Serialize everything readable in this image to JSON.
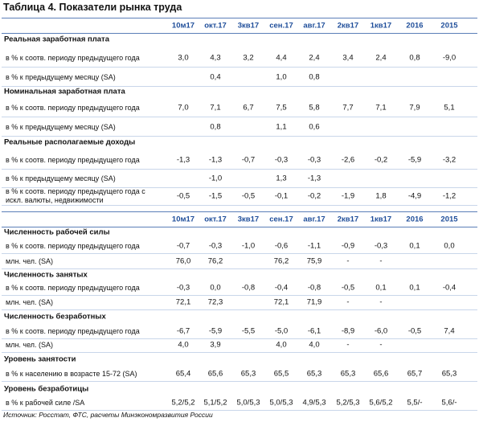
{
  "title": "Таблица 4. Показатели рынка труда",
  "columns": [
    "10м17",
    "окт.17",
    "3кв17",
    "сен.17",
    "авг.17",
    "2кв17",
    "1кв17",
    "2016",
    "2015"
  ],
  "tables": [
    {
      "sections": [
        {
          "title": "Реальная заработная плата",
          "rows": [
            {
              "label": "в % к соотв. периоду предыдущего года",
              "values": [
                "3,0",
                "4,3",
                "3,2",
                "4,4",
                "2,4",
                "3,4",
                "2,4",
                "0,8",
                "-9,0"
              ]
            },
            {
              "label": "в % к предыдущему месяцу (SA)",
              "values": [
                null,
                "0,4",
                null,
                "1,0",
                "0,8",
                null,
                null,
                null,
                null
              ]
            }
          ]
        },
        {
          "title": "Номинальная заработная плата",
          "rows": [
            {
              "label": "в % к соотв. периоду предыдущего года",
              "values": [
                "7,0",
                "7,1",
                "6,7",
                "7,5",
                "5,8",
                "7,7",
                "7,1",
                "7,9",
                "5,1"
              ]
            },
            {
              "label": "в % к предыдущему месяцу (SA)",
              "values": [
                null,
                "0,8",
                null,
                "1,1",
                "0,6",
                null,
                null,
                null,
                null
              ]
            }
          ]
        },
        {
          "title": "Реальные располагаемые доходы",
          "rows": [
            {
              "label": "в % к соотв. периоду предыдущего года",
              "values": [
                "-1,3",
                "-1,3",
                "-0,7",
                "-0,3",
                "-0,3",
                "-2,6",
                "-0,2",
                "-5,9",
                "-3,2"
              ]
            },
            {
              "label": "в % к предыдущему месяцу (SA)",
              "values": [
                null,
                "-1,0",
                null,
                "1,3",
                "-1,3",
                null,
                null,
                null,
                null
              ]
            },
            {
              "label": "в % к соотв. периоду предыдущего года с искл. валюты, недвижимости",
              "values": [
                "-0,5",
                "-1,5",
                "-0,5",
                "-0,1",
                "-0,2",
                "-1,9",
                "1,8",
                "-4,9",
                "-1,2"
              ]
            }
          ]
        }
      ]
    },
    {
      "sections": [
        {
          "title": "Численность рабочей силы",
          "rows": [
            {
              "label": "в % к соотв. периоду предыдущего года",
              "values": [
                "-0,7",
                "-0,3",
                "-1,0",
                "-0,6",
                "-1,1",
                "-0,9",
                "-0,3",
                "0,1",
                "0,0"
              ]
            },
            {
              "label": "млн. чел. (SA)",
              "values": [
                "76,0",
                "76,2",
                null,
                "76,2",
                "75,9",
                "-",
                "-",
                null,
                null
              ]
            }
          ]
        },
        {
          "title": "Численность занятых",
          "rows": [
            {
              "label": "в % к соотв. периоду предыдущего года",
              "values": [
                "-0,3",
                "0,0",
                "-0,8",
                "-0,4",
                "-0,8",
                "-0,5",
                "0,1",
                "0,1",
                "-0,4"
              ]
            },
            {
              "label": "млн. чел. (SA)",
              "values": [
                "72,1",
                "72,3",
                null,
                "72,1",
                "71,9",
                "-",
                "-",
                null,
                null
              ]
            }
          ]
        },
        {
          "title": "Численность безработных",
          "rows": [
            {
              "label": "в % к соотв. периоду предыдущего года",
              "values": [
                "-6,7",
                "-5,9",
                "-5,5",
                "-5,0",
                "-6,1",
                "-8,9",
                "-6,0",
                "-0,5",
                "7,4"
              ]
            },
            {
              "label": "млн. чел. (SA)",
              "values": [
                "4,0",
                "3,9",
                null,
                "4,0",
                "4,0",
                "-",
                "-",
                null,
                null
              ]
            }
          ]
        },
        {
          "title": "Уровень занятости",
          "rows": [
            {
              "label": "в % к населению в возрасте 15-72 (SA)",
              "values": [
                "65,4",
                "65,6",
                "65,3",
                "65,5",
                "65,3",
                "65,3",
                "65,6",
                "65,7",
                "65,3"
              ]
            }
          ]
        },
        {
          "title": "Уровень безработицы",
          "rows": [
            {
              "label": "в % к рабочей силе /SA",
              "values": [
                "5,2/5,2",
                "5,1/5,2",
                "5,0/5,3",
                "5,0/5,3",
                "4,9/5,3",
                "5,2/5,3",
                "5,6/5,2",
                "5,5/-",
                "5,6/-"
              ]
            }
          ]
        }
      ]
    }
  ],
  "footer": "Источник: Росстат, ФТС, расчеты Минэкономразвития России"
}
